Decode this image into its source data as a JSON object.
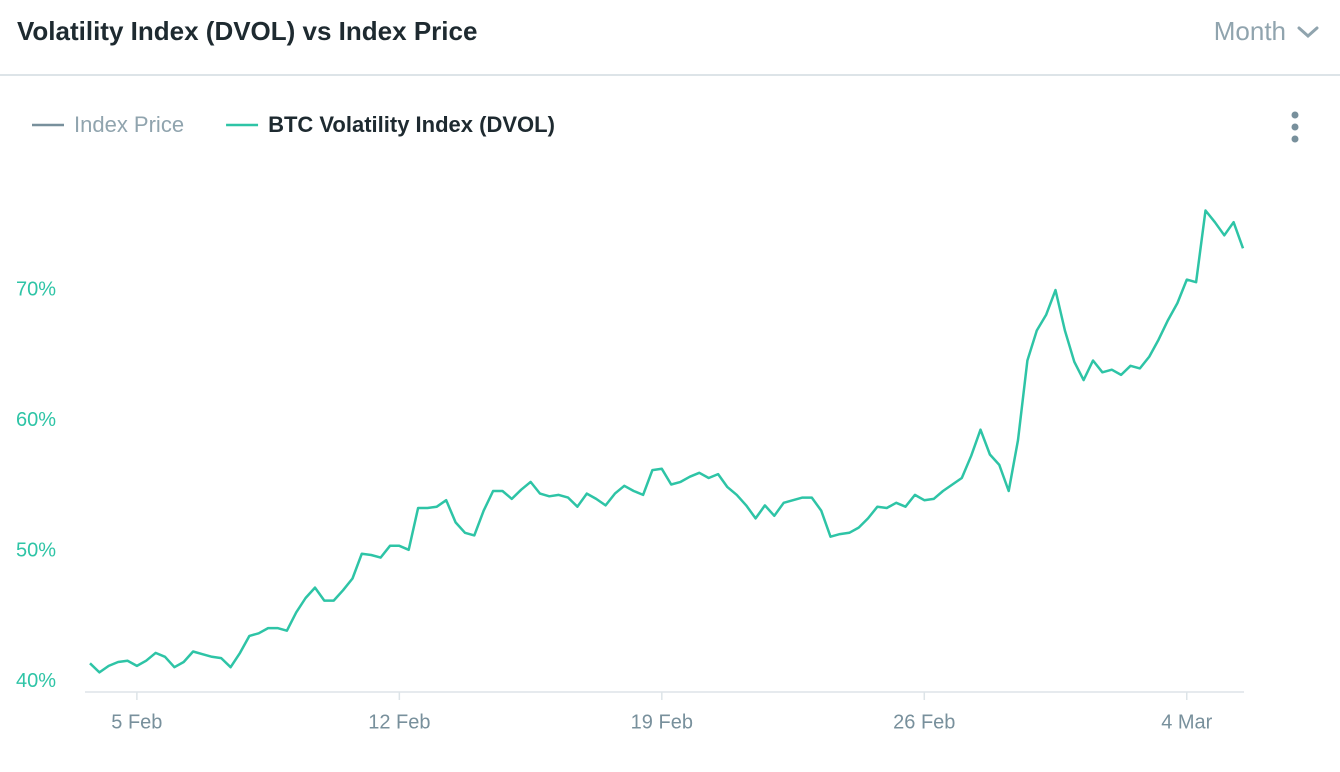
{
  "chart_data": {
    "type": "line",
    "title": "Volatility Index (DVOL) vs Index Price",
    "period": "Month",
    "categories": [
      null,
      null,
      null,
      null,
      null,
      "5 Feb",
      null,
      null,
      null,
      null,
      null,
      null,
      null,
      null,
      null,
      null,
      null,
      null,
      null,
      null,
      null,
      null,
      null,
      null,
      null,
      null,
      null,
      null,
      null,
      null,
      null,
      null,
      null,
      "12 Feb",
      null,
      null,
      null,
      null,
      null,
      null,
      null,
      null,
      null,
      null,
      null,
      null,
      null,
      null,
      null,
      null,
      null,
      null,
      null,
      null,
      null,
      null,
      null,
      null,
      null,
      null,
      null,
      "19 Feb",
      null,
      null,
      null,
      null,
      null,
      null,
      null,
      null,
      null,
      null,
      null,
      null,
      null,
      null,
      null,
      null,
      null,
      null,
      null,
      null,
      null,
      null,
      null,
      null,
      null,
      null,
      null,
      "26 Feb",
      null,
      null,
      null,
      null,
      null,
      null,
      null,
      null,
      null,
      null,
      null,
      null,
      null,
      null,
      null,
      null,
      null,
      null,
      null,
      null,
      null,
      null,
      null,
      null,
      null,
      null,
      null,
      "4 Mar",
      null,
      null,
      null,
      null,
      null,
      null
    ],
    "series": [
      {
        "name": "Index Price",
        "color": "#78909c",
        "visible": false
      },
      {
        "name": "BTC Volatility Index (DVOL)",
        "color": "#2ec4a6",
        "visible": true,
        "values": [
          41.4,
          40.7,
          41.2,
          41.5,
          41.6,
          41.2,
          41.6,
          42.2,
          41.9,
          41.1,
          41.5,
          42.3,
          42.1,
          41.9,
          41.8,
          41.1,
          42.2,
          43.5,
          43.7,
          44.1,
          44.1,
          43.9,
          45.3,
          46.4,
          47.2,
          46.2,
          46.2,
          47.0,
          47.9,
          49.8,
          49.7,
          49.5,
          50.4,
          50.4,
          50.1,
          53.3,
          53.3,
          53.4,
          53.9,
          52.2,
          51.4,
          51.2,
          53.1,
          54.6,
          54.6,
          54.0,
          54.7,
          55.3,
          54.4,
          54.2,
          54.3,
          54.1,
          53.4,
          54.4,
          54.0,
          53.5,
          54.4,
          55.0,
          54.6,
          54.3,
          56.2,
          56.3,
          55.1,
          55.3,
          55.7,
          56.0,
          55.6,
          55.9,
          54.9,
          54.3,
          53.5,
          52.5,
          53.5,
          52.7,
          53.7,
          53.9,
          54.1,
          54.1,
          53.1,
          51.1,
          51.3,
          51.4,
          51.8,
          52.5,
          53.4,
          53.3,
          53.7,
          53.4,
          54.3,
          53.9,
          54.0,
          54.6,
          55.1,
          55.6,
          57.3,
          59.3,
          57.4,
          56.6,
          54.6,
          58.5,
          64.6,
          66.9,
          68.1,
          70.0,
          66.9,
          64.5,
          63.1,
          64.6,
          63.7,
          63.9,
          63.5,
          64.2,
          64.0,
          64.9,
          66.2,
          67.7,
          69.0,
          70.8,
          70.6,
          76.1,
          75.2,
          74.2,
          75.2,
          73.2
        ]
      }
    ],
    "ylim": [
      39.2,
      79.2
    ],
    "yticks": [
      {
        "value": 40,
        "label": "40%"
      },
      {
        "value": 50,
        "label": "50%"
      },
      {
        "value": 60,
        "label": "60%"
      },
      {
        "value": 70,
        "label": "70%"
      }
    ]
  }
}
